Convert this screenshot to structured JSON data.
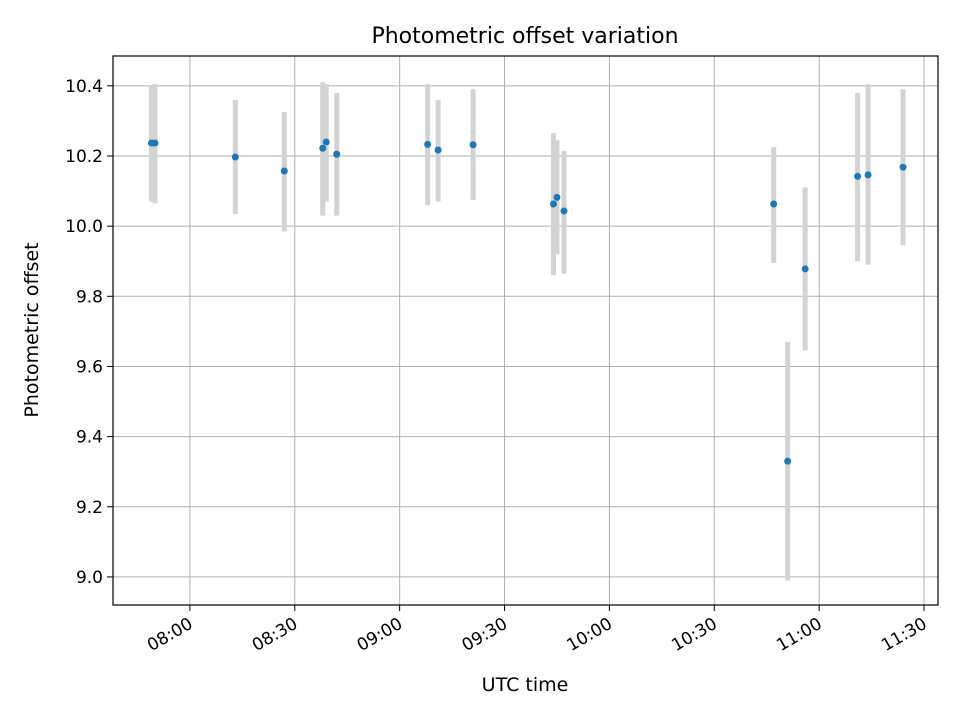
{
  "chart_data": {
    "type": "scatter",
    "title": "Photometric offset variation",
    "xlabel": "UTC time",
    "ylabel": "Photometric offset",
    "xlim": [
      "07:38",
      "11:34"
    ],
    "ylim": [
      8.92,
      10.485
    ],
    "grid": true,
    "x_ticks": [
      "08:00",
      "08:30",
      "09:00",
      "09:30",
      "10:00",
      "10:30",
      "11:00",
      "11:30"
    ],
    "y_ticks": [
      "9.0",
      "9.2",
      "9.4",
      "9.6",
      "9.8",
      "10.0",
      "10.2",
      "10.4"
    ],
    "marker_color": "#1f77b4",
    "errorbar_color": "#d3d3d3",
    "points": [
      {
        "x": "07:49",
        "y": 10.237,
        "low": 10.07,
        "high": 10.4
      },
      {
        "x": "07:50",
        "y": 10.237,
        "low": 10.065,
        "high": 10.405
      },
      {
        "x": "08:13",
        "y": 10.197,
        "low": 10.035,
        "high": 10.36
      },
      {
        "x": "08:27",
        "y": 10.157,
        "low": 9.985,
        "high": 10.325
      },
      {
        "x": "08:38",
        "y": 10.222,
        "low": 10.03,
        "high": 10.41
      },
      {
        "x": "08:39",
        "y": 10.24,
        "low": 10.07,
        "high": 10.405
      },
      {
        "x": "08:42",
        "y": 10.205,
        "low": 10.03,
        "high": 10.38
      },
      {
        "x": "09:08",
        "y": 10.233,
        "low": 10.06,
        "high": 10.405
      },
      {
        "x": "09:11",
        "y": 10.217,
        "low": 10.07,
        "high": 10.36
      },
      {
        "x": "09:21",
        "y": 10.232,
        "low": 10.075,
        "high": 10.39
      },
      {
        "x": "09:44",
        "y": 10.063,
        "low": 9.86,
        "high": 10.265
      },
      {
        "x": "09:45",
        "y": 10.082,
        "low": 9.92,
        "high": 10.245
      },
      {
        "x": "09:47",
        "y": 10.043,
        "low": 9.865,
        "high": 10.215
      },
      {
        "x": "10:47",
        "y": 10.063,
        "low": 9.895,
        "high": 10.225
      },
      {
        "x": "10:51",
        "y": 9.33,
        "low": 8.99,
        "high": 9.67
      },
      {
        "x": "10:56",
        "y": 9.878,
        "low": 9.645,
        "high": 10.11
      },
      {
        "x": "11:11",
        "y": 10.142,
        "low": 9.9,
        "high": 10.38
      },
      {
        "x": "11:14",
        "y": 10.146,
        "low": 9.89,
        "high": 10.405
      },
      {
        "x": "11:24",
        "y": 10.168,
        "low": 9.945,
        "high": 10.39
      }
    ]
  }
}
